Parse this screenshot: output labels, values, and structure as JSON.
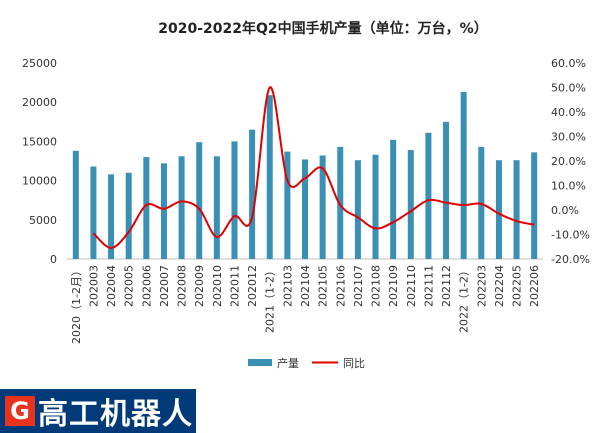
{
  "chart_data": {
    "type": "bar",
    "title": "2020-2022年Q2中国手机产量（单位：万台，%）",
    "categories": [
      "2020（1-2月）",
      "202003",
      "202004",
      "202005",
      "202006",
      "202007",
      "202008",
      "202009",
      "202010",
      "202011",
      "202012",
      "2021（1-2）",
      "202103",
      "202104",
      "202105",
      "202106",
      "202107",
      "202108",
      "202109",
      "202110",
      "202111",
      "202112",
      "2022（1-2）",
      "202203",
      "202204",
      "202205",
      "202206"
    ],
    "series": [
      {
        "name": "产量",
        "kind": "bar",
        "axis": "left",
        "color": "#3a8fb5",
        "values": [
          13800,
          11800,
          10800,
          11000,
          13000,
          12200,
          13100,
          14900,
          13100,
          15000,
          16500,
          20900,
          13700,
          12700,
          13200,
          14300,
          12600,
          13300,
          15200,
          13900,
          16100,
          17500,
          21300,
          14300,
          12600,
          12600,
          13600
        ]
      },
      {
        "name": "同比",
        "kind": "line",
        "axis": "right",
        "color": "#e00000",
        "values": [
          null,
          -9.5,
          -15.5,
          -9,
          2,
          0.5,
          3.5,
          0.5,
          -11,
          -2.5,
          -3,
          50,
          12,
          13,
          17,
          2,
          -3,
          -7.5,
          -5,
          -0.5,
          4,
          3,
          2,
          2.5,
          -1.5,
          -4.5,
          -6
        ]
      }
    ],
    "y_left": {
      "min": 0,
      "max": 25000,
      "ticks": [
        "0",
        "5000",
        "10000",
        "15000",
        "20000",
        "25000"
      ]
    },
    "y_right": {
      "min": -20,
      "max": 60,
      "ticks": [
        "-20.0%",
        "-10.0%",
        "0.0%",
        "10.0%",
        "20.0%",
        "30.0%",
        "40.0%",
        "50.0%",
        "60.0%"
      ]
    },
    "legend": {
      "position": "bottom",
      "items": [
        "产量",
        "同比"
      ]
    },
    "grid": false
  },
  "logo": {
    "mark": "G",
    "text": "高工机器人"
  }
}
